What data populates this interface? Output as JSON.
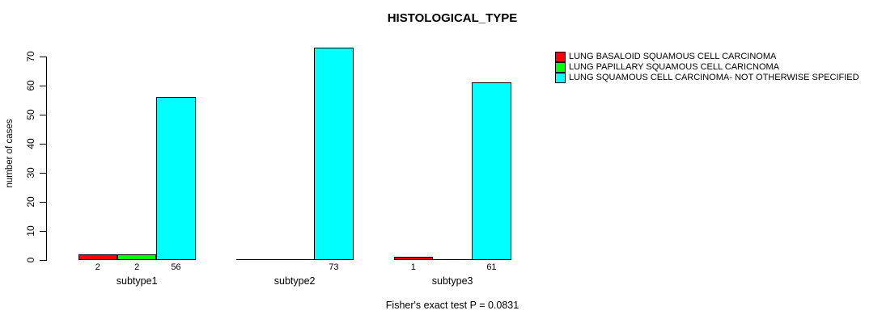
{
  "chart_data": {
    "type": "bar",
    "title": "HISTOLOGICAL_TYPE",
    "ylabel": "number of cases",
    "xlabel": "",
    "ylim": [
      0,
      70
    ],
    "yticks": [
      0,
      10,
      20,
      30,
      40,
      50,
      60,
      70
    ],
    "categories": [
      "subtype1",
      "subtype2",
      "subtype3"
    ],
    "series": [
      {
        "name": "LUNG BASALOID SQUAMOUS CELL CARCINOMA",
        "color": "#ff0000",
        "values": [
          2,
          0,
          1
        ]
      },
      {
        "name": "LUNG PAPILLARY SQUAMOUS CELL CARICNOMA",
        "color": "#00ff00",
        "values": [
          2,
          0,
          0
        ]
      },
      {
        "name": "LUNG SQUAMOUS CELL CARCINOMA- NOT OTHERWISE SPECIFIED",
        "color": "#00ffff",
        "values": [
          56,
          73,
          61
        ]
      }
    ],
    "bar_value_labels": [
      [
        "2",
        "",
        "1"
      ],
      [
        "2",
        "",
        ""
      ],
      [
        "56",
        "73",
        "61"
      ]
    ],
    "annotation": "Fisher's exact test P = 0.0831",
    "legend_position": "top-right",
    "grid": false,
    "background_color": "#ffffff",
    "axis_color": "#000000"
  }
}
